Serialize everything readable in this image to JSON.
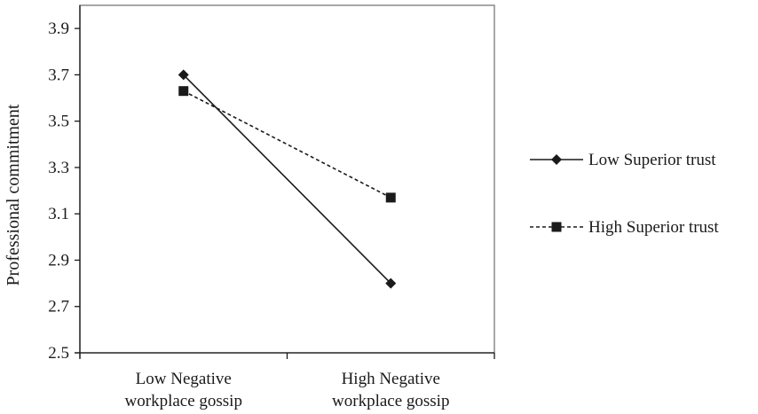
{
  "chart_data": {
    "type": "line",
    "title": "",
    "xlabel": "",
    "ylabel": "Professional commitment",
    "ylim": [
      2.5,
      4.0
    ],
    "yticks": [
      "2.5",
      "2.7",
      "2.9",
      "3.1",
      "3.3",
      "3.5",
      "3.7",
      "3.9"
    ],
    "categories": [
      [
        "Low Negative",
        "workplace gossip"
      ],
      [
        "High Negative",
        "workplace gossip"
      ]
    ],
    "series": [
      {
        "name": "Low Superior trust",
        "values": [
          3.7,
          2.8
        ],
        "marker": "diamond",
        "dash": "solid",
        "color": "#1a1a1a"
      },
      {
        "name": "High Superior trust",
        "values": [
          3.63,
          3.17
        ],
        "marker": "square",
        "dash": "dashed",
        "color": "#1a1a1a"
      }
    ],
    "grid": false,
    "legend": "right"
  }
}
